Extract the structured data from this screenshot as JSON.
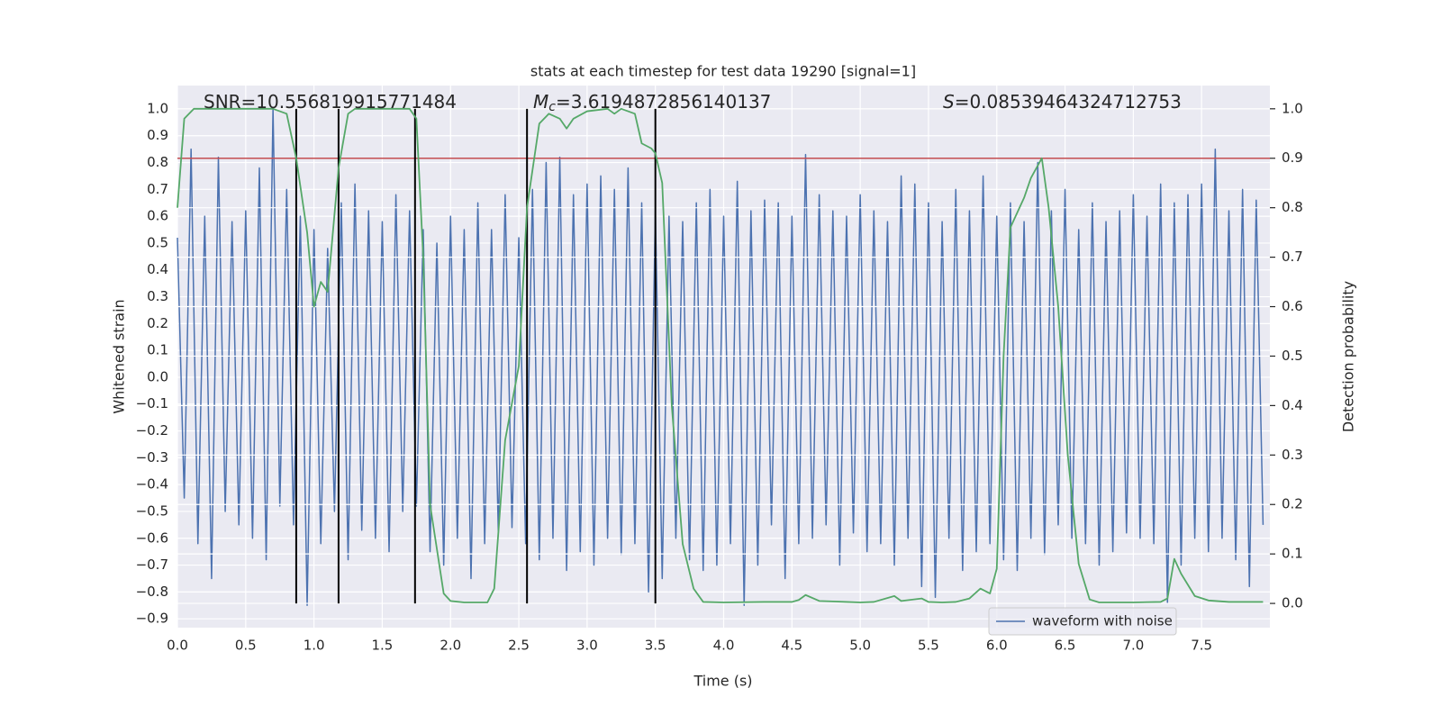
{
  "chart_data": {
    "type": "line",
    "title": "stats at each timestep for test data 19290 [signal=1]",
    "xlabel": "Time (s)",
    "ylabel": "Whitened strain",
    "y2label": "Detection probability",
    "annotations": [
      {
        "text": "SNR=10.556819915771484"
      },
      {
        "symbol": "M",
        "subscript": "c",
        "text": "=3.6194872856140137"
      },
      {
        "symbol": "S",
        "text": "=0.08539464324712753"
      }
    ],
    "xlim": [
      0,
      8
    ],
    "ylim": [
      -0.933,
      1.087
    ],
    "y2lim": [
      -0.049,
      1.047
    ],
    "xticks": [
      {
        "value": 0,
        "label": "0.0"
      },
      {
        "value": 0.5,
        "label": "0.5"
      },
      {
        "value": 1,
        "label": "1.0"
      },
      {
        "value": 1.5,
        "label": "1.5"
      },
      {
        "value": 2,
        "label": "2.0"
      },
      {
        "value": 2.5,
        "label": "2.5"
      },
      {
        "value": 3,
        "label": "3.0"
      },
      {
        "value": 3.5,
        "label": "3.5"
      },
      {
        "value": 4,
        "label": "4.0"
      },
      {
        "value": 4.5,
        "label": "4.5"
      },
      {
        "value": 5,
        "label": "5.0"
      },
      {
        "value": 5.5,
        "label": "5.5"
      },
      {
        "value": 6,
        "label": "6.0"
      },
      {
        "value": 6.5,
        "label": "6.5"
      },
      {
        "value": 7,
        "label": "7.0"
      },
      {
        "value": 7.5,
        "label": "7.5"
      }
    ],
    "yticks": [
      {
        "value": -0.9,
        "label": "−0.9"
      },
      {
        "value": -0.8,
        "label": "−0.8"
      },
      {
        "value": -0.7,
        "label": "−0.7"
      },
      {
        "value": -0.6,
        "label": "−0.6"
      },
      {
        "value": -0.5,
        "label": "−0.5"
      },
      {
        "value": -0.4,
        "label": "−0.4"
      },
      {
        "value": -0.3,
        "label": "−0.3"
      },
      {
        "value": -0.2,
        "label": "−0.2"
      },
      {
        "value": -0.1,
        "label": "−0.1"
      },
      {
        "value": 0,
        "label": "0.0"
      },
      {
        "value": 0.1,
        "label": "0.1"
      },
      {
        "value": 0.2,
        "label": "0.2"
      },
      {
        "value": 0.3,
        "label": "0.3"
      },
      {
        "value": 0.4,
        "label": "0.4"
      },
      {
        "value": 0.5,
        "label": "0.5"
      },
      {
        "value": 0.6,
        "label": "0.6"
      },
      {
        "value": 0.7,
        "label": "0.7"
      },
      {
        "value": 0.8,
        "label": "0.8"
      },
      {
        "value": 0.9,
        "label": "0.9"
      },
      {
        "value": 1,
        "label": "1.0"
      }
    ],
    "y2ticks": [
      {
        "value": 0,
        "label": "0.0"
      },
      {
        "value": 0.1,
        "label": "0.1"
      },
      {
        "value": 0.2,
        "label": "0.2"
      },
      {
        "value": 0.3,
        "label": "0.3"
      },
      {
        "value": 0.4,
        "label": "0.4"
      },
      {
        "value": 0.5,
        "label": "0.5"
      },
      {
        "value": 0.6,
        "label": "0.6"
      },
      {
        "value": 0.7,
        "label": "0.7"
      },
      {
        "value": 0.8,
        "label": "0.8"
      },
      {
        "value": 0.9,
        "label": "0.9"
      },
      {
        "value": 1,
        "label": "1.0"
      }
    ],
    "grid": true,
    "legend": "lower right",
    "threshold": {
      "value": 0.9,
      "axis": "y2",
      "color": "#c44e52"
    },
    "vlines": {
      "x": [
        0.87,
        1.18,
        1.74,
        2.56,
        3.5
      ],
      "axis": "y2",
      "color": "#000000"
    },
    "series": [
      {
        "name": "waveform with noise",
        "color": "#4c72b0",
        "x": [
          0,
          0.05,
          0.1,
          0.15,
          0.2,
          0.25,
          0.3,
          0.35,
          0.4,
          0.45,
          0.5,
          0.55,
          0.6,
          0.65,
          0.7,
          0.75,
          0.8,
          0.85,
          0.9,
          0.95,
          1,
          1.05,
          1.1,
          1.15,
          1.2,
          1.25,
          1.3,
          1.35,
          1.4,
          1.45,
          1.5,
          1.55,
          1.6,
          1.65,
          1.7,
          1.75,
          1.8,
          1.85,
          1.9,
          1.95,
          2,
          2.05,
          2.1,
          2.15,
          2.2,
          2.25,
          2.3,
          2.35,
          2.4,
          2.45,
          2.5,
          2.55,
          2.6,
          2.65,
          2.7,
          2.75,
          2.8,
          2.85,
          2.9,
          2.95,
          3,
          3.05,
          3.1,
          3.15,
          3.2,
          3.25,
          3.3,
          3.35,
          3.4,
          3.45,
          3.5,
          3.55,
          3.6,
          3.65,
          3.7,
          3.75,
          3.8,
          3.85,
          3.9,
          3.95,
          4,
          4.05,
          4.1,
          4.15,
          4.2,
          4.25,
          4.3,
          4.35,
          4.4,
          4.45,
          4.5,
          4.55,
          4.6,
          4.65,
          4.7,
          4.75,
          4.8,
          4.85,
          4.9,
          4.95,
          5,
          5.05,
          5.1,
          5.15,
          5.2,
          5.25,
          5.3,
          5.35,
          5.4,
          5.45,
          5.5,
          5.55,
          5.6,
          5.65,
          5.7,
          5.75,
          5.8,
          5.85,
          5.9,
          5.95,
          6,
          6.05,
          6.1,
          6.15,
          6.2,
          6.25,
          6.3,
          6.35,
          6.4,
          6.45,
          6.5,
          6.55,
          6.6,
          6.65,
          6.7,
          6.75,
          6.8,
          6.85,
          6.9,
          6.95,
          7,
          7.05,
          7.1,
          7.15,
          7.2,
          7.25,
          7.3,
          7.35,
          7.4,
          7.45,
          7.5,
          7.55,
          7.6,
          7.65,
          7.7,
          7.75,
          7.8,
          7.85,
          7.9,
          7.95
        ],
        "values": [
          0.52,
          -0.45,
          0.85,
          -0.62,
          0.6,
          -0.75,
          0.82,
          -0.5,
          0.58,
          -0.55,
          0.62,
          -0.6,
          0.78,
          -0.68,
          1.0,
          -0.48,
          0.7,
          -0.55,
          0.6,
          -0.85,
          0.55,
          -0.62,
          0.48,
          -0.5,
          0.65,
          -0.68,
          0.72,
          -0.57,
          0.62,
          -0.6,
          0.58,
          -0.65,
          0.68,
          -0.5,
          0.62,
          -0.48,
          0.55,
          -0.65,
          0.5,
          -0.7,
          0.6,
          -0.6,
          0.55,
          -0.75,
          0.65,
          -0.62,
          0.55,
          -0.58,
          0.68,
          -0.56,
          0.52,
          -0.62,
          0.7,
          -0.68,
          0.8,
          -0.6,
          0.82,
          -0.72,
          0.68,
          -0.65,
          0.72,
          -0.7,
          0.75,
          -0.6,
          0.7,
          -0.66,
          0.78,
          -0.62,
          0.65,
          -0.8,
          0.62,
          -0.75,
          0.6,
          -0.6,
          0.58,
          -0.68,
          0.65,
          -0.72,
          0.7,
          -0.7,
          0.6,
          -0.62,
          0.73,
          -0.85,
          0.62,
          -0.7,
          0.66,
          -0.55,
          0.65,
          -0.75,
          0.6,
          -0.62,
          0.83,
          -0.6,
          0.68,
          -0.55,
          0.62,
          -0.7,
          0.6,
          -0.58,
          0.68,
          -0.65,
          0.62,
          -0.62,
          0.58,
          -0.7,
          0.75,
          -0.6,
          0.72,
          -0.78,
          0.65,
          -0.82,
          0.58,
          -0.6,
          0.7,
          -0.72,
          0.62,
          -0.65,
          0.75,
          -0.62,
          0.6,
          -0.68,
          0.65,
          -0.72,
          0.58,
          -0.6,
          0.8,
          -0.66,
          0.62,
          -0.55,
          0.7,
          -0.6,
          0.55,
          -0.62,
          0.65,
          -0.7,
          0.58,
          -0.65,
          0.62,
          -0.58,
          0.68,
          -0.6,
          0.6,
          -0.62,
          0.72,
          -0.84,
          0.65,
          -0.7,
          0.68,
          -0.6,
          0.72,
          -0.65,
          0.85,
          -0.6,
          0.62,
          -0.68,
          0.7,
          -0.78,
          0.66,
          -0.55
        ]
      },
      {
        "color": "#55a868",
        "axis": "y2",
        "x": [
          0,
          0.05,
          0.12,
          0.2,
          0.7,
          0.8,
          0.87,
          0.95,
          1,
          1.05,
          1.1,
          1.18,
          1.25,
          1.3,
          1.7,
          1.75,
          1.8,
          1.85,
          1.95,
          2,
          2.1,
          2.27,
          2.32,
          2.4,
          2.5,
          2.56,
          2.65,
          2.72,
          2.8,
          2.85,
          2.9,
          3,
          3.15,
          3.2,
          3.25,
          3.35,
          3.4,
          3.47,
          3.5,
          3.55,
          3.62,
          3.7,
          3.78,
          3.85,
          4,
          4.3,
          4.5,
          4.55,
          4.6,
          4.7,
          4.8,
          4.9,
          5,
          5.1,
          5.25,
          5.3,
          5.45,
          5.5,
          5.6,
          5.7,
          5.8,
          5.88,
          5.95,
          6,
          6.05,
          6.1,
          6.2,
          6.25,
          6.33,
          6.38,
          6.45,
          6.52,
          6.6,
          6.68,
          6.75,
          7,
          7.2,
          7.25,
          7.3,
          7.35,
          7.45,
          7.55,
          7.7,
          7.95
        ],
        "values": [
          0.8,
          0.98,
          1.0,
          1.0,
          1.0,
          0.99,
          0.9,
          0.75,
          0.6,
          0.65,
          0.63,
          0.88,
          0.99,
          1.0,
          1.0,
          0.98,
          0.7,
          0.2,
          0.02,
          0.005,
          0.002,
          0.002,
          0.03,
          0.33,
          0.48,
          0.8,
          0.97,
          0.99,
          0.98,
          0.96,
          0.98,
          0.995,
          1.0,
          0.99,
          1.0,
          0.99,
          0.93,
          0.92,
          0.91,
          0.85,
          0.4,
          0.12,
          0.03,
          0.003,
          0.002,
          0.003,
          0.003,
          0.007,
          0.017,
          0.005,
          0.004,
          0.003,
          0.002,
          0.003,
          0.015,
          0.005,
          0.01,
          0.003,
          0.002,
          0.003,
          0.01,
          0.03,
          0.02,
          0.07,
          0.5,
          0.76,
          0.82,
          0.86,
          0.9,
          0.8,
          0.6,
          0.3,
          0.08,
          0.008,
          0.002,
          0.002,
          0.003,
          0.01,
          0.09,
          0.06,
          0.015,
          0.006,
          0.003,
          0.003
        ]
      }
    ]
  }
}
